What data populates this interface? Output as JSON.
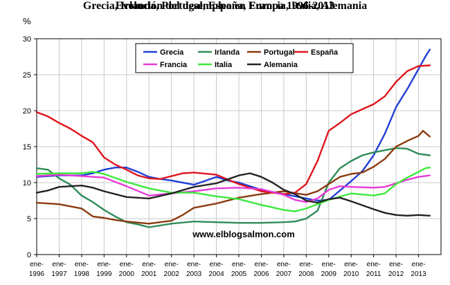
{
  "title": "Evolución del desempleo en Europa 1996-2013",
  "subtitle": "Grecia, Irlanda, Portugal, España, Francia, Italia, Alemania",
  "watermark": "www.elblogsalmon.com",
  "chart_data": {
    "type": "line",
    "title": "Evolución del desempleo en Europa 1996-2013",
    "subtitle": "Grecia, Irlanda, Portugal, España, Francia, Italia, Alemania",
    "ylabel": "%",
    "xlabel": "",
    "ylim": [
      0,
      30
    ],
    "xlim": [
      1996,
      2014
    ],
    "y_ticks": [
      0,
      5,
      10,
      15,
      20,
      25,
      30
    ],
    "x_ticks": [
      {
        "line1": "ene-",
        "line2": "1996",
        "x": 1996
      },
      {
        "line1": "ene-",
        "line2": "1997",
        "x": 1997
      },
      {
        "line1": "ene-",
        "line2": "1998",
        "x": 1998
      },
      {
        "line1": "ene-",
        "line2": "1999",
        "x": 1999
      },
      {
        "line1": "ene-",
        "line2": "2000",
        "x": 2000
      },
      {
        "line1": "ene-",
        "line2": "2001",
        "x": 2001
      },
      {
        "line1": "ene-",
        "line2": "2002",
        "x": 2002
      },
      {
        "line1": "ene-",
        "line2": "2003",
        "x": 2003
      },
      {
        "line1": "ene-",
        "line2": "2004",
        "x": 2004
      },
      {
        "line1": "ene-",
        "line2": "2005",
        "x": 2005
      },
      {
        "line1": "ene-",
        "line2": "2006",
        "x": 2006
      },
      {
        "line1": "ene-",
        "line2": "2007",
        "x": 2007
      },
      {
        "line1": "ene-",
        "line2": "2008",
        "x": 2008
      },
      {
        "line1": "ene-",
        "line2": "2009",
        "x": 2009
      },
      {
        "line1": "ene-",
        "line2": "2010",
        "x": 2010
      },
      {
        "line1": "ene-",
        "line2": "2011",
        "x": 2011
      },
      {
        "line1": "ene-",
        "line2": "2012",
        "x": 2012
      },
      {
        "line1": "ene-",
        "line2": "2013",
        "x": 2013
      }
    ],
    "grid": true,
    "legend_position": "top-center",
    "series": [
      {
        "name": "Grecia",
        "color": "#1f3fd6",
        "x": [
          1996,
          1997,
          1998,
          1998.5,
          1999,
          1999.5,
          2000,
          2000.5,
          2001,
          2001.5,
          2002,
          2003,
          2004,
          2004.5,
          2005,
          2006,
          2007,
          2008,
          2008.5,
          2009,
          2009.5,
          2010,
          2010.5,
          2011,
          2011.5,
          2012,
          2012.5,
          2013,
          2013.3,
          2013.5
        ],
        "y": [
          10.8,
          11.0,
          11.0,
          11.3,
          11.8,
          12.1,
          12.1,
          11.5,
          10.8,
          10.5,
          10.3,
          9.7,
          10.8,
          10.3,
          10.0,
          9.0,
          8.4,
          7.8,
          7.5,
          7.6,
          8.9,
          10.2,
          11.6,
          13.8,
          16.8,
          20.5,
          23.0,
          25.8,
          27.5,
          28.5
        ]
      },
      {
        "name": "Irlanda",
        "color": "#2e8b57",
        "x": [
          1996,
          1996.5,
          1997,
          1997.5,
          1998,
          1998.5,
          1999,
          1999.5,
          2000,
          2000.5,
          2001,
          2002,
          2003,
          2004,
          2005,
          2006,
          2007,
          2007.5,
          2008,
          2008.5,
          2009,
          2009.5,
          2010,
          2010.5,
          2011,
          2011.5,
          2012,
          2012.5,
          2013,
          2013.5
        ],
        "y": [
          12.0,
          11.8,
          10.6,
          9.7,
          8.2,
          7.3,
          6.2,
          5.3,
          4.5,
          4.2,
          3.8,
          4.3,
          4.6,
          4.5,
          4.4,
          4.4,
          4.5,
          4.6,
          5.0,
          6.1,
          10.0,
          12.0,
          13.0,
          13.8,
          14.2,
          14.5,
          14.8,
          14.7,
          14.0,
          13.8
        ]
      },
      {
        "name": "Portugal",
        "color": "#8b3a0f",
        "x": [
          1996,
          1997,
          1998,
          1998.5,
          1999,
          1999.5,
          2000,
          2001,
          2002,
          2002.5,
          2003,
          2004,
          2005,
          2006,
          2007,
          2008,
          2008.5,
          2009,
          2009.5,
          2010,
          2010.5,
          2011,
          2011.5,
          2012,
          2012.5,
          2013,
          2013.2,
          2013.5
        ],
        "y": [
          7.2,
          7.0,
          6.4,
          5.3,
          5.1,
          4.8,
          4.6,
          4.3,
          4.7,
          5.5,
          6.5,
          7.1,
          7.9,
          8.4,
          8.8,
          8.3,
          8.8,
          9.8,
          10.8,
          11.2,
          11.4,
          12.2,
          13.3,
          15.0,
          15.8,
          16.5,
          17.2,
          16.4
        ]
      },
      {
        "name": "España",
        "color": "#e0141c",
        "x": [
          1996,
          1996.5,
          1997,
          1997.5,
          1998,
          1998.5,
          1999,
          1999.5,
          2000,
          2000.5,
          2001,
          2001.5,
          2002,
          2002.5,
          2003,
          2004,
          2005,
          2006,
          2007,
          2007.5,
          2008,
          2008.5,
          2009,
          2009.5,
          2010,
          2010.5,
          2011,
          2011.5,
          2012,
          2012.5,
          2013,
          2013.5
        ],
        "y": [
          19.8,
          19.2,
          18.3,
          17.5,
          16.5,
          15.6,
          13.5,
          12.5,
          11.8,
          11.0,
          10.6,
          10.5,
          10.9,
          11.3,
          11.4,
          11.1,
          9.8,
          8.8,
          8.4,
          8.6,
          9.8,
          13.0,
          17.2,
          18.3,
          19.5,
          20.2,
          20.9,
          22.0,
          24.0,
          25.5,
          26.2,
          26.3
        ]
      },
      {
        "name": "Francia",
        "color": "#e83ad8",
        "x": [
          1996,
          1997,
          1998,
          1999,
          2000,
          2001,
          2002,
          2003,
          2004,
          2005,
          2006,
          2007,
          2007.5,
          2008,
          2008.5,
          2009,
          2009.5,
          2010,
          2011,
          2011.5,
          2012,
          2012.5,
          2013,
          2013.5
        ],
        "y": [
          10.9,
          11.1,
          10.9,
          10.7,
          9.5,
          8.2,
          8.5,
          8.8,
          9.2,
          9.3,
          9.1,
          8.3,
          7.6,
          7.3,
          7.8,
          9.0,
          9.5,
          9.4,
          9.3,
          9.4,
          9.9,
          10.4,
          10.8,
          11.0
        ]
      },
      {
        "name": "Italia",
        "color": "#3ce83c",
        "x": [
          1996,
          1997,
          1998,
          1998.5,
          1999,
          2000,
          2001,
          2002,
          2003,
          2004,
          2005,
          2006,
          2007,
          2007.5,
          2008,
          2009,
          2010,
          2011,
          2011.5,
          2012,
          2012.5,
          2013,
          2013.3,
          2013.5
        ],
        "y": [
          11.2,
          11.3,
          11.3,
          11.5,
          11.2,
          10.1,
          9.2,
          8.6,
          8.6,
          8.1,
          7.7,
          6.9,
          6.2,
          6.0,
          6.4,
          7.6,
          8.5,
          8.2,
          8.5,
          9.8,
          10.7,
          11.5,
          12.0,
          12.1
        ]
      },
      {
        "name": "Alemania",
        "color": "#222222",
        "x": [
          1996,
          1996.5,
          1997,
          1998,
          1998.5,
          1999,
          2000,
          2001,
          2002,
          2003,
          2004,
          2005,
          2005.5,
          2006,
          2006.5,
          2007,
          2007.5,
          2008,
          2008.5,
          2009,
          2009.5,
          2010,
          2011,
          2011.5,
          2012,
          2012.5,
          2013,
          2013.5
        ],
        "y": [
          8.6,
          8.9,
          9.4,
          9.6,
          9.3,
          8.8,
          8.0,
          7.8,
          8.5,
          9.4,
          9.9,
          11.0,
          11.3,
          10.8,
          10.0,
          9.0,
          8.4,
          7.5,
          7.2,
          7.7,
          7.9,
          7.4,
          6.3,
          5.8,
          5.5,
          5.4,
          5.5,
          5.4
        ]
      }
    ]
  }
}
